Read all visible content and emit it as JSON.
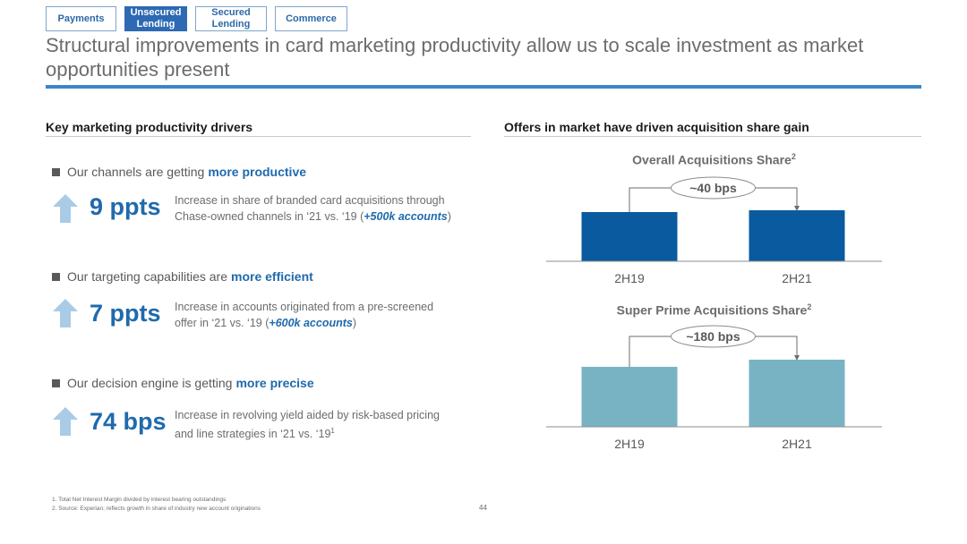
{
  "nav": {
    "tabs": [
      {
        "label": "Payments",
        "active": false
      },
      {
        "label": "Unsecured\nLending",
        "active": true
      },
      {
        "label": "Secured\nLending",
        "active": false
      },
      {
        "label": "Commerce",
        "active": false
      }
    ]
  },
  "title": "Structural improvements in card marketing productivity allow us to scale investment as market opportunities present",
  "left": {
    "heading": "Key marketing productivity drivers",
    "drivers": [
      {
        "bullet_prefix": "Our channels are getting",
        "bullet_highlight": "more productive",
        "metric": "9 ppts",
        "desc_line1": "Increase in share of branded card acquisitions through",
        "desc_line2_prefix": "Chase-owned channels in ‘21 vs. ‘19 (",
        "desc_accent": "+500k accounts",
        "desc_line2_suffix": ")"
      },
      {
        "bullet_prefix": "Our targeting capabilities are",
        "bullet_highlight": "more efficient",
        "metric": "7 ppts",
        "desc_line1": "Increase in accounts originated from a pre-screened",
        "desc_line2_prefix": "offer in ‘21 vs. ‘19 (",
        "desc_accent": "+600k accounts",
        "desc_line2_suffix": ")"
      },
      {
        "bullet_prefix": "Our decision engine is getting",
        "bullet_highlight": "more precise",
        "metric": "74 bps",
        "desc_line1": "Increase in revolving yield aided by risk-based pricing",
        "desc_line2_prefix": "and line strategies in ‘21 vs. ‘19",
        "desc_sup": "1"
      }
    ]
  },
  "right": {
    "heading": "Offers in market have driven acquisition share gain"
  },
  "chart_data": [
    {
      "type": "bar",
      "title": "Overall Acquisitions Share",
      "title_sup": "2",
      "categories": [
        "2H19",
        "2H21"
      ],
      "values": [
        55,
        57
      ],
      "ylim": [
        0,
        100
      ],
      "annotation": "~40 bps",
      "color": "#0a5aa0",
      "grid": false
    },
    {
      "type": "bar",
      "title": "Super Prime Acquisitions Share",
      "title_sup": "2",
      "categories": [
        "2H19",
        "2H21"
      ],
      "values": [
        67,
        75
      ],
      "ylim": [
        0,
        100
      ],
      "annotation": "~180 bps",
      "color": "#78b3c4",
      "grid": false
    }
  ],
  "footnotes": [
    "1. Total Net Interest Margin divided by interest bearing outstandings",
    "2. Source: Experian; reflects growth in share of industry new account originations"
  ],
  "page_number": "44"
}
